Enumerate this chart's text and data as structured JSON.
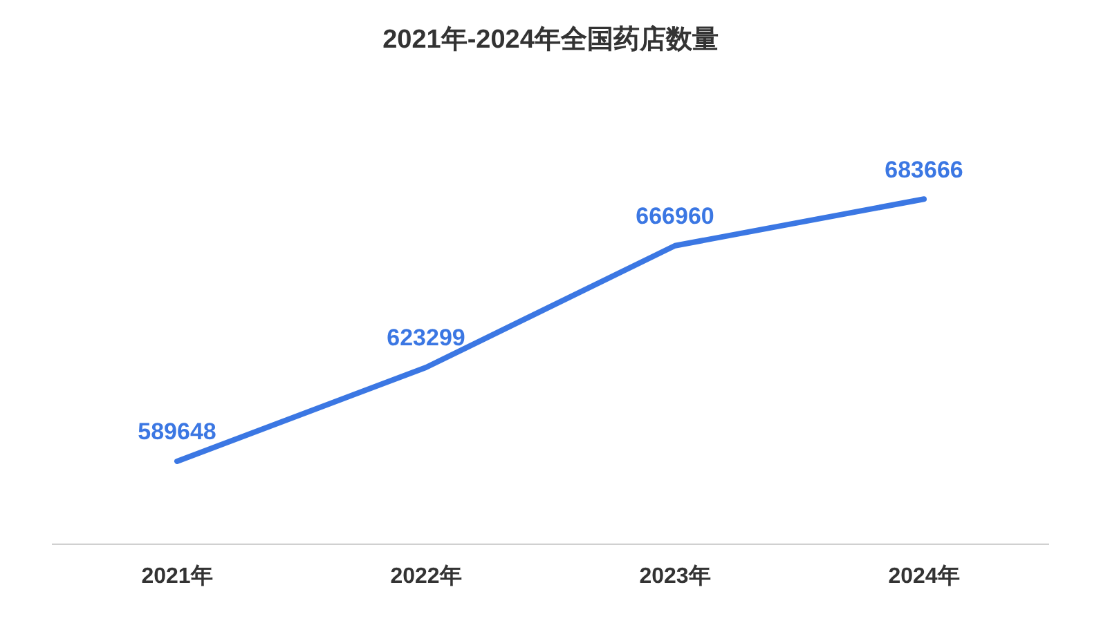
{
  "chart_data": {
    "type": "line",
    "title": "2021年-2024年全国药店数量",
    "categories": [
      "2021年",
      "2022年",
      "2023年",
      "2024年"
    ],
    "series": [
      {
        "color": "#3b77e3",
        "values": [
          589648,
          623299,
          666960,
          683666
        ]
      }
    ],
    "data_labels": true,
    "grid": false,
    "legend": false,
    "marker": "none",
    "line_style": "solid"
  }
}
